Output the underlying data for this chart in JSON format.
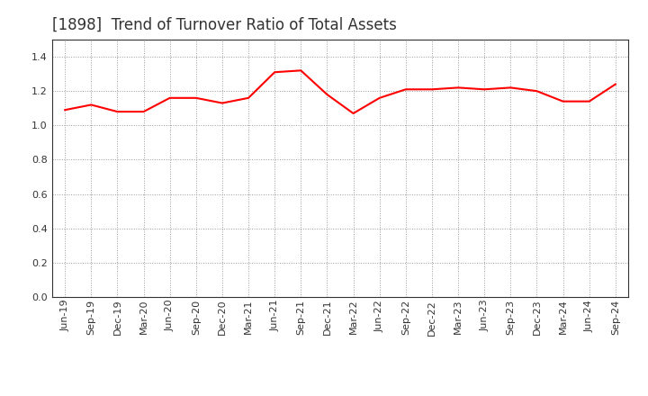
{
  "title": "[1898]  Trend of Turnover Ratio of Total Assets",
  "x_labels": [
    "Jun-19",
    "Sep-19",
    "Dec-19",
    "Mar-20",
    "Jun-20",
    "Sep-20",
    "Dec-20",
    "Mar-21",
    "Jun-21",
    "Sep-21",
    "Dec-21",
    "Mar-22",
    "Jun-22",
    "Sep-22",
    "Dec-22",
    "Mar-23",
    "Jun-23",
    "Sep-23",
    "Dec-23",
    "Mar-24",
    "Jun-24",
    "Sep-24"
  ],
  "values": [
    1.09,
    1.12,
    1.08,
    1.08,
    1.16,
    1.16,
    1.13,
    1.16,
    1.31,
    1.32,
    1.18,
    1.07,
    1.16,
    1.21,
    1.21,
    1.22,
    1.21,
    1.22,
    1.2,
    1.14,
    1.14,
    1.24
  ],
  "line_color": "#FF0000",
  "line_width": 1.5,
  "ylim": [
    0.0,
    1.5
  ],
  "yticks": [
    0.0,
    0.2,
    0.4,
    0.6,
    0.8,
    1.0,
    1.2,
    1.4
  ],
  "grid_color": "#999999",
  "bg_color": "#ffffff",
  "title_fontsize": 12,
  "tick_fontsize": 8,
  "title_color": "#333333",
  "spine_color": "#333333"
}
